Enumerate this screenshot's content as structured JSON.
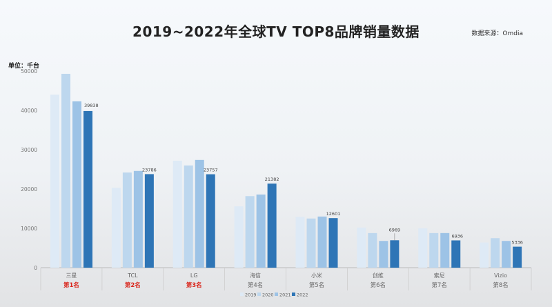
{
  "title": "2019~2022年全球TV TOP8品牌销量数据",
  "source": "数据来源：Omdia",
  "unit": "单位：千台",
  "chart_data": {
    "type": "bar",
    "title": "2019~2022年全球TV TOP8品牌销量数据",
    "ylabel": "单位：千台",
    "ylim": [
      0,
      50000
    ],
    "yticks": [
      0,
      10000,
      20000,
      30000,
      40000,
      50000
    ],
    "grid": false,
    "legend": "bottom",
    "categories": [
      "三星",
      "TCL",
      "LG",
      "海信",
      "小米",
      "创维",
      "索尼",
      "Vizio"
    ],
    "ranks": [
      "第1名",
      "第2名",
      "第3名",
      "第4名",
      "第5名",
      "第6名",
      "第7名",
      "第8名"
    ],
    "rank_highlight_color": "#d9261c",
    "highlighted_ranks": 3,
    "series": [
      {
        "name": "2019",
        "color": "#deeaf6",
        "values": [
          44000,
          20300,
          27200,
          15600,
          12900,
          10200,
          10000,
          6400
        ]
      },
      {
        "name": "2020",
        "color": "#bdd7ee",
        "values": [
          49300,
          24200,
          26000,
          18200,
          12500,
          8800,
          8800,
          7500
        ]
      },
      {
        "name": "2021",
        "color": "#9dc3e6",
        "values": [
          42300,
          24600,
          27400,
          18600,
          13000,
          6800,
          8800,
          6800
        ]
      },
      {
        "name": "2022",
        "color": "#2e75b6",
        "values": [
          39838,
          23786,
          23757,
          21382,
          12601,
          6969,
          6936,
          5336
        ]
      }
    ],
    "data_labels": [
      "39838",
      "23786",
      "23757",
      "21382",
      "12601",
      "6969",
      "6936",
      "5336"
    ]
  }
}
